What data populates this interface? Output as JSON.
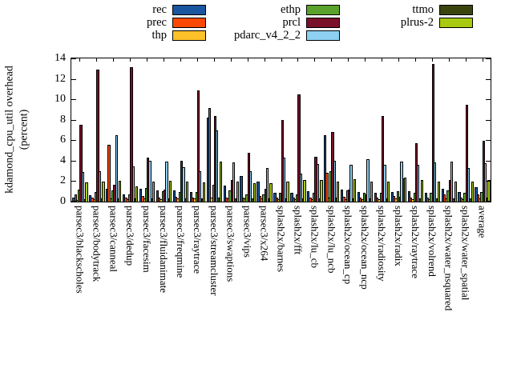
{
  "figure": {
    "background": "#ffffff"
  },
  "chart_data": {
    "type": "bar",
    "title": "",
    "ylabel_lines": [
      "kdamond_cpu_util overhead",
      "(percent)"
    ],
    "xlabel": "",
    "ylim": [
      0,
      14
    ],
    "yticks": [
      0,
      2,
      4,
      6,
      8,
      10,
      12,
      14
    ],
    "grid": false,
    "legend_position": "top",
    "categories": [
      "parsec3/blackscholes",
      "parsec3/bodytrack",
      "parsec3/canneal",
      "parsec3/dedup",
      "parsec3/facesim",
      "parsec3/fluidanimate",
      "parsec3/freqmine",
      "parsec3/raytrace",
      "parsec3/streamcluster",
      "parsec3/swaptions",
      "parsec3/vips",
      "parsec3/x264",
      "splash2x/barnes",
      "splash2x/fft",
      "splash2x/lu_cb",
      "splash2x/lu_ncb",
      "splash2x/ocean_cp",
      "splash2x/ocean_ncp",
      "splash2x/radiosity",
      "splash2x/radix",
      "splash2x/raytrace",
      "splash2x/volrend",
      "splash2x/water_nsquared",
      "splash2x/water_spatial",
      "average"
    ],
    "series": [
      {
        "name": "rec",
        "color": "#1a55a0",
        "values": [
          0.3,
          0.55,
          1.2,
          0.65,
          1.15,
          1.0,
          1.05,
          0.9,
          8.1,
          1.5,
          2.4,
          1.85,
          0.75,
          0.8,
          0.95,
          6.4,
          1.1,
          0.9,
          0.8,
          0.85,
          0.95,
          0.8,
          1.2,
          0.9,
          1.3
        ]
      },
      {
        "name": "prec",
        "color": "#fc4805",
        "values": [
          0.6,
          0.35,
          5.5,
          0.3,
          0.5,
          0.3,
          0.4,
          0.3,
          9.1,
          0.3,
          0.3,
          0.5,
          0.3,
          0.35,
          0.35,
          2.7,
          0.4,
          0.35,
          0.3,
          0.45,
          0.35,
          0.3,
          0.6,
          0.3,
          0.6
        ]
      },
      {
        "name": "thp",
        "color": "#fdc229",
        "values": [
          0.1,
          0.15,
          0.2,
          0.15,
          0.2,
          0.15,
          0.2,
          0.2,
          0.3,
          0.2,
          0.2,
          0.2,
          0.15,
          0.15,
          0.15,
          0.3,
          0.15,
          0.15,
          0.15,
          0.2,
          0.15,
          0.15,
          0.2,
          0.15,
          0.25
        ]
      },
      {
        "name": "ethp",
        "color": "#5aa22b",
        "values": [
          1.1,
          0.9,
          1.0,
          0.6,
          1.25,
          0.95,
          0.9,
          0.85,
          1.6,
          1.0,
          0.6,
          0.6,
          0.8,
          0.6,
          0.75,
          2.9,
          1.0,
          0.75,
          0.8,
          0.95,
          0.8,
          0.75,
          1.0,
          0.75,
          0.85
        ]
      },
      {
        "name": "prcl",
        "color": "#7a102a",
        "values": [
          7.4,
          12.8,
          1.6,
          13.1,
          4.2,
          1.1,
          3.9,
          10.8,
          8.3,
          2.0,
          4.7,
          1.2,
          7.9,
          10.4,
          4.3,
          6.7,
          1.1,
          0.6,
          8.3,
          0.4,
          5.6,
          13.4,
          2.0,
          9.4,
          5.9
        ]
      },
      {
        "name": "pdarc_v4_2_2",
        "color": "#8dd0f2",
        "values": [
          2.85,
          2.9,
          6.4,
          3.4,
          3.9,
          3.85,
          3.3,
          2.9,
          6.9,
          3.75,
          2.9,
          3.2,
          4.25,
          2.65,
          3.6,
          3.95,
          3.55,
          4.1,
          3.55,
          3.85,
          3.5,
          3.75,
          3.85,
          3.2,
          3.7
        ]
      },
      {
        "name": "ttmo",
        "color": "#3a450d",
        "values": [
          0.15,
          0.2,
          0.25,
          0.2,
          0.2,
          0.2,
          0.2,
          0.2,
          0.3,
          0.2,
          0.2,
          0.2,
          0.2,
          0.2,
          0.2,
          0.3,
          0.2,
          0.2,
          0.2,
          2.2,
          0.2,
          0.2,
          0.2,
          0.2,
          0.3
        ]
      },
      {
        "name": "plrus-2",
        "color": "#a8cb11",
        "values": [
          1.8,
          1.85,
          1.95,
          1.4,
          1.9,
          1.95,
          1.85,
          1.8,
          3.85,
          1.9,
          1.7,
          1.75,
          1.85,
          2.05,
          2.0,
          1.9,
          2.1,
          1.9,
          1.9,
          2.25,
          2.0,
          1.85,
          1.9,
          1.9,
          2.0
        ]
      }
    ],
    "legend_columns": [
      [
        "rec",
        "prec",
        "thp"
      ],
      [
        "ethp",
        "prcl",
        "pdarc_v4_2_2"
      ],
      [
        "ttmo",
        "plrus-2"
      ]
    ]
  }
}
